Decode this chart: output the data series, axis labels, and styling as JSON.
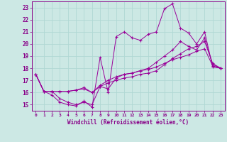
{
  "xlabel": "Windchill (Refroidissement éolien,°C)",
  "background_color": "#cce8e4",
  "grid_color": "#b0d8d4",
  "line_color": "#990099",
  "xlim": [
    -0.5,
    23.5
  ],
  "ylim": [
    14.5,
    23.5
  ],
  "xticks": [
    0,
    1,
    2,
    3,
    4,
    5,
    6,
    7,
    8,
    9,
    10,
    11,
    12,
    13,
    14,
    15,
    16,
    17,
    18,
    19,
    20,
    21,
    22,
    23
  ],
  "yticks": [
    15,
    16,
    17,
    18,
    19,
    20,
    21,
    22,
    23
  ],
  "series": [
    [
      17.5,
      16.1,
      15.8,
      15.2,
      15.0,
      14.9,
      15.3,
      14.8,
      18.9,
      16.0,
      20.6,
      21.0,
      20.5,
      20.3,
      20.8,
      21.0,
      22.9,
      23.3,
      21.3,
      20.9,
      20.0,
      21.0,
      18.1,
      18.0
    ],
    [
      17.5,
      16.1,
      16.1,
      16.1,
      16.1,
      16.2,
      16.4,
      16.0,
      16.6,
      17.0,
      17.3,
      17.5,
      17.6,
      17.8,
      17.9,
      18.1,
      18.4,
      18.7,
      18.9,
      19.1,
      19.4,
      19.6,
      18.2,
      18.0
    ],
    [
      17.5,
      16.1,
      16.1,
      16.1,
      16.1,
      16.2,
      16.3,
      16.0,
      16.5,
      16.8,
      17.0,
      17.2,
      17.3,
      17.5,
      17.6,
      17.8,
      18.3,
      18.8,
      19.2,
      19.6,
      19.8,
      20.2,
      18.4,
      18.0
    ],
    [
      17.5,
      16.1,
      16.1,
      15.5,
      15.2,
      15.0,
      15.2,
      15.0,
      16.5,
      16.3,
      17.2,
      17.5,
      17.6,
      17.8,
      18.0,
      18.5,
      19.0,
      19.5,
      20.2,
      19.8,
      19.5,
      20.5,
      18.3,
      18.0
    ]
  ]
}
